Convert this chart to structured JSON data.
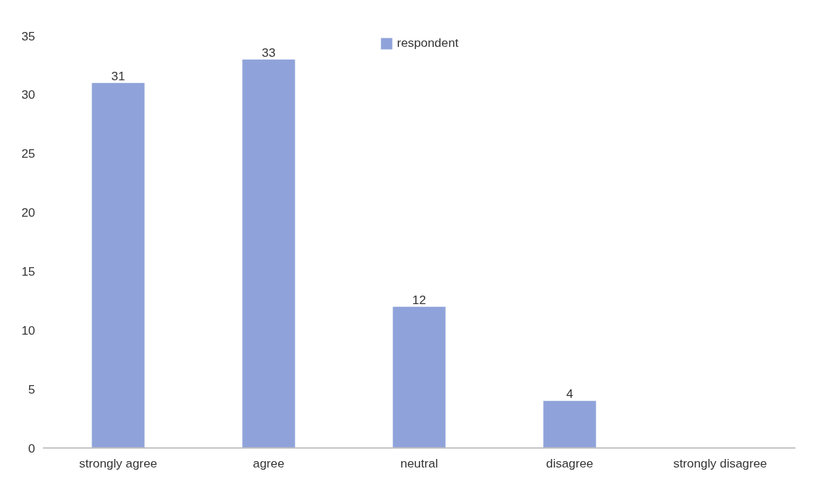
{
  "chart_data": {
    "type": "bar",
    "categories": [
      "strongly agree",
      "agree",
      "neutral",
      "disagree",
      "strongly disagree"
    ],
    "series": [
      {
        "name": "respondent",
        "color": "#8fa3da",
        "values": [
          31,
          33,
          12,
          4,
          0
        ],
        "value_labels": [
          "31",
          "33",
          "12",
          "4",
          null
        ]
      }
    ],
    "ylim": [
      0,
      35
    ],
    "yticks": [
      0,
      5,
      10,
      15,
      20,
      25,
      30,
      35
    ],
    "grid": false,
    "legend": "top"
  }
}
